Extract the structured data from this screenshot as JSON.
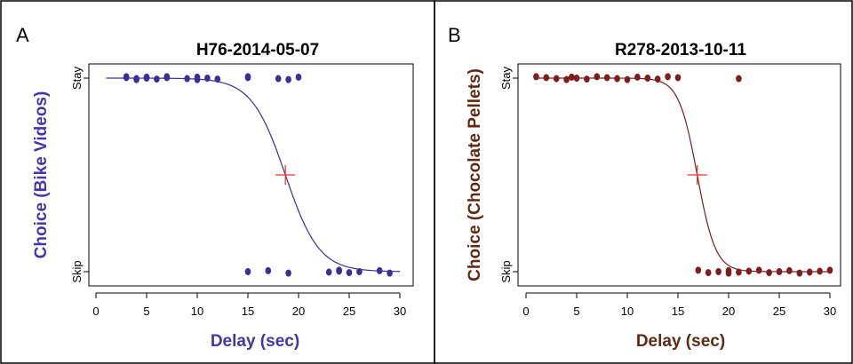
{
  "chart_data": [
    {
      "panel_label": "A",
      "type": "scatter",
      "title": "H76-2014-05-07",
      "xlabel": "Delay (sec)",
      "ylabel": "Choice (Bike Videos)",
      "ytick_labels": [
        "Skip",
        "Stay"
      ],
      "xticks": [
        "0",
        "5",
        "10",
        "15",
        "20",
        "25",
        "30"
      ],
      "xlim": [
        0,
        31
      ],
      "ylim": [
        0,
        1
      ],
      "point_color": "#3a2f96",
      "curve_color": "#3a2f96",
      "label_color": "#4236a8",
      "marker_color": "#e8302e",
      "fit": {
        "midpoint": 18.7,
        "slope": 0.6,
        "x_range": [
          1,
          30
        ]
      },
      "crosshair": {
        "x": 18.7,
        "y": 0.5
      },
      "points": [
        {
          "x": 3,
          "y": 1
        },
        {
          "x": 3,
          "y": 1
        },
        {
          "x": 4,
          "y": 1
        },
        {
          "x": 4,
          "y": 1
        },
        {
          "x": 5,
          "y": 1
        },
        {
          "x": 5,
          "y": 1
        },
        {
          "x": 6,
          "y": 1
        },
        {
          "x": 7,
          "y": 1
        },
        {
          "x": 7,
          "y": 1
        },
        {
          "x": 9,
          "y": 1
        },
        {
          "x": 10,
          "y": 1
        },
        {
          "x": 10,
          "y": 1
        },
        {
          "x": 11,
          "y": 1
        },
        {
          "x": 12,
          "y": 1
        },
        {
          "x": 15,
          "y": 1
        },
        {
          "x": 15,
          "y": 1
        },
        {
          "x": 18,
          "y": 1
        },
        {
          "x": 19,
          "y": 1
        },
        {
          "x": 20,
          "y": 1
        },
        {
          "x": 15,
          "y": 0
        },
        {
          "x": 17,
          "y": 0
        },
        {
          "x": 19,
          "y": 0
        },
        {
          "x": 23,
          "y": 0
        },
        {
          "x": 24,
          "y": 0
        },
        {
          "x": 24,
          "y": 0
        },
        {
          "x": 25,
          "y": 0
        },
        {
          "x": 26,
          "y": 0
        },
        {
          "x": 28,
          "y": 0
        },
        {
          "x": 29,
          "y": 0
        }
      ]
    },
    {
      "panel_label": "B",
      "type": "scatter",
      "title": "R278-2013-10-11",
      "xlabel": "Delay (sec)",
      "ylabel": "Choice (Chocolate Pellets)",
      "ytick_labels": [
        "Skip",
        "Stay"
      ],
      "xticks": [
        "0",
        "5",
        "10",
        "15",
        "20",
        "25",
        "30"
      ],
      "xlim": [
        0,
        31
      ],
      "ylim": [
        0,
        1
      ],
      "point_color": "#7d1d1d",
      "curve_color": "#7d1d1d",
      "label_color": "#5e2a14",
      "marker_color": "#e8302e",
      "fit": {
        "midpoint": 16.9,
        "slope": 1.1,
        "x_range": [
          1,
          30
        ]
      },
      "crosshair": {
        "x": 16.9,
        "y": 0.5
      },
      "points": [
        {
          "x": 1,
          "y": 1
        },
        {
          "x": 2,
          "y": 1
        },
        {
          "x": 3,
          "y": 1
        },
        {
          "x": 4,
          "y": 1
        },
        {
          "x": 4.5,
          "y": 1
        },
        {
          "x": 5,
          "y": 1
        },
        {
          "x": 6,
          "y": 1
        },
        {
          "x": 7,
          "y": 1
        },
        {
          "x": 8,
          "y": 1
        },
        {
          "x": 9,
          "y": 1
        },
        {
          "x": 10,
          "y": 1
        },
        {
          "x": 11,
          "y": 1
        },
        {
          "x": 12,
          "y": 1
        },
        {
          "x": 13,
          "y": 1
        },
        {
          "x": 14,
          "y": 1
        },
        {
          "x": 15,
          "y": 1
        },
        {
          "x": 21,
          "y": 1
        },
        {
          "x": 17,
          "y": 0
        },
        {
          "x": 18,
          "y": 0
        },
        {
          "x": 19,
          "y": 0
        },
        {
          "x": 20,
          "y": 0
        },
        {
          "x": 20,
          "y": 0
        },
        {
          "x": 21,
          "y": 0
        },
        {
          "x": 22,
          "y": 0
        },
        {
          "x": 23,
          "y": 0
        },
        {
          "x": 24,
          "y": 0
        },
        {
          "x": 25,
          "y": 0
        },
        {
          "x": 26,
          "y": 0
        },
        {
          "x": 27,
          "y": 0
        },
        {
          "x": 28,
          "y": 0
        },
        {
          "x": 29,
          "y": 0
        },
        {
          "x": 30,
          "y": 0
        }
      ]
    }
  ]
}
